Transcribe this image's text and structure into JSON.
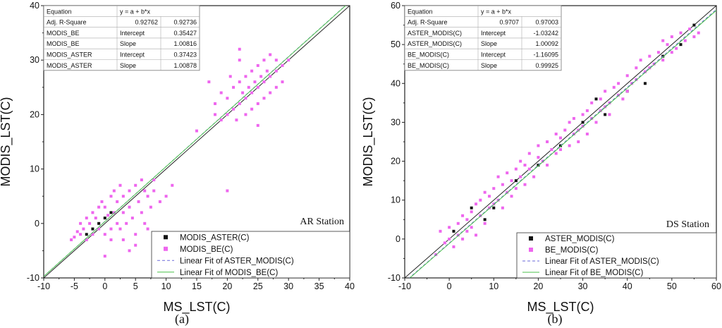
{
  "chart_data": [
    {
      "type": "scatter",
      "panel_label": "(a)",
      "station_label": "AR Station",
      "xlabel": "MS_LST(C)",
      "ylabel": "MODIS_LST(C)",
      "xlim": [
        -10,
        40
      ],
      "ylim": [
        -10,
        40
      ],
      "xticks": [
        "-10",
        "-5",
        "0",
        "5",
        "10",
        "15",
        "20",
        "25",
        "30",
        "35",
        "40"
      ],
      "yticks": [
        "-10",
        "0",
        "10",
        "20",
        "30",
        "40"
      ],
      "stats_table": [
        [
          "Equation",
          "y = a + b*x",
          ""
        ],
        [
          "Adj. R-Square",
          "0.92762",
          "0.92736"
        ],
        [
          "MODIS_BE",
          "Intercept",
          "0.35427"
        ],
        [
          "MODIS_BE",
          "Slope",
          "1.00816"
        ],
        [
          "MODIS_ASTER",
          "Intercept",
          "0.37423"
        ],
        [
          "MODIS_ASTER",
          "Slope",
          "1.00878"
        ]
      ],
      "legend": [
        "MODIS_ASTER(C)",
        "MODIS_BE(C)",
        "Linear Fit of ASTER_MODIS(C)",
        "Linear Fit of MODIS_BE(C)"
      ],
      "series": [
        {
          "name": "MODIS_ASTER(C)",
          "kind": "scatter",
          "color": "#111111",
          "points": [
            [
              -3,
              -2
            ],
            [
              -1,
              0
            ],
            [
              0,
              1
            ],
            [
              1,
              2
            ],
            [
              -2,
              -1
            ]
          ]
        },
        {
          "name": "MODIS_BE(C)",
          "kind": "scatter",
          "color": "#ee66ee",
          "points": [
            [
              -5.5,
              -3
            ],
            [
              -5,
              -2.5
            ],
            [
              -4.5,
              -1.5
            ],
            [
              -4,
              -2
            ],
            [
              -4,
              0
            ],
            [
              -3.5,
              -1
            ],
            [
              -3,
              -3
            ],
            [
              -3,
              1
            ],
            [
              -2.5,
              0
            ],
            [
              -2,
              -2
            ],
            [
              -2,
              2
            ],
            [
              -1.5,
              1
            ],
            [
              -1,
              3
            ],
            [
              -1,
              -1
            ],
            [
              -0.5,
              4
            ],
            [
              0,
              -2
            ],
            [
              0,
              -6
            ],
            [
              0,
              3
            ],
            [
              0.5,
              1.5
            ],
            [
              1,
              -1
            ],
            [
              1,
              5
            ],
            [
              1,
              -3
            ],
            [
              1.5,
              2
            ],
            [
              1.5,
              6
            ],
            [
              2,
              0
            ],
            [
              2,
              4
            ],
            [
              2.5,
              -1
            ],
            [
              2.5,
              7
            ],
            [
              3,
              2
            ],
            [
              3,
              5
            ],
            [
              3,
              -3
            ],
            [
              3.5,
              0
            ],
            [
              4,
              6
            ],
            [
              4,
              -5
            ],
            [
              4,
              3
            ],
            [
              4.5,
              1
            ],
            [
              5,
              -2
            ],
            [
              5,
              7
            ],
            [
              5,
              -4
            ],
            [
              5.5,
              4
            ],
            [
              6,
              2
            ],
            [
              6,
              8
            ],
            [
              6.5,
              0
            ],
            [
              6.5,
              6
            ],
            [
              7,
              5
            ],
            [
              7,
              -1
            ],
            [
              7.5,
              3
            ],
            [
              8,
              8
            ],
            [
              8,
              6
            ],
            [
              9,
              4
            ],
            [
              10,
              5
            ],
            [
              11,
              7
            ],
            [
              15,
              17
            ],
            [
              17,
              26
            ],
            [
              18,
              20
            ],
            [
              18,
              22
            ],
            [
              19,
              19
            ],
            [
              19,
              24
            ],
            [
              20,
              20
            ],
            [
              20,
              23
            ],
            [
              20,
              6
            ],
            [
              20.5,
              27
            ],
            [
              21,
              21
            ],
            [
              21,
              25
            ],
            [
              21.5,
              19
            ],
            [
              22,
              22
            ],
            [
              22,
              26
            ],
            [
              22,
              30
            ],
            [
              22,
              32
            ],
            [
              22.5,
              24
            ],
            [
              23,
              23
            ],
            [
              23,
              27
            ],
            [
              23,
              20
            ],
            [
              23.5,
              25
            ],
            [
              24,
              24
            ],
            [
              24,
              28
            ],
            [
              24,
              21
            ],
            [
              24.5,
              26
            ],
            [
              25,
              25
            ],
            [
              25,
              29
            ],
            [
              25,
              22
            ],
            [
              25,
              18
            ],
            [
              25.5,
              27
            ],
            [
              26,
              26
            ],
            [
              26,
              30
            ],
            [
              26,
              23
            ],
            [
              26.5,
              28
            ],
            [
              27,
              27
            ],
            [
              27,
              31
            ],
            [
              27,
              24
            ],
            [
              28,
              28
            ],
            [
              28,
              25
            ],
            [
              28,
              30
            ],
            [
              29,
              29
            ],
            [
              29,
              26
            ],
            [
              30,
              30
            ]
          ]
        }
      ],
      "fit_lines": [
        {
          "name": "Linear Fit of ASTER_MODIS(C)",
          "intercept": 0.37423,
          "slope": 1.00878,
          "color": "#6a6ad8",
          "dash": true
        },
        {
          "name": "Linear Fit of MODIS_BE(C)",
          "intercept": 0.35427,
          "slope": 1.00816,
          "color": "#4cc24c",
          "dash": false
        }
      ]
    },
    {
      "type": "scatter",
      "panel_label": "(b)",
      "station_label": "DS Station",
      "xlabel": "MS_LST(C)",
      "ylabel": "MODIS_LST(C)",
      "xlim": [
        -10,
        60
      ],
      "ylim": [
        -10,
        60
      ],
      "xticks": [
        "-10",
        "0",
        "10",
        "20",
        "30",
        "40",
        "50",
        "60"
      ],
      "yticks": [
        "-10",
        "0",
        "10",
        "20",
        "30",
        "40",
        "50",
        "60"
      ],
      "stats_table": [
        [
          "Equation",
          "y = a + b*x",
          ""
        ],
        [
          "Adj. R-Square",
          "0.9707",
          "0.97003"
        ],
        [
          "ASTER_MODIS(C)",
          "Intercept",
          "-1.03242"
        ],
        [
          "ASTER_MODIS(C)",
          "Slope",
          "1.00092"
        ],
        [
          "BE_MODIS(C)",
          "Intercept",
          "-1.16095"
        ],
        [
          "BE_MODIS(C)",
          "Slope",
          "0.99925"
        ]
      ],
      "legend": [
        "ASTER_MODIS(C)",
        "BE_MODIS(C)",
        "Linear Fit of ASTER_MODIS(C)",
        "Linear Fit of BE_MODIS(C)"
      ],
      "series": [
        {
          "name": "ASTER_MODIS(C)",
          "kind": "scatter",
          "color": "#111111",
          "points": [
            [
              5,
              8
            ],
            [
              1,
              2
            ],
            [
              8,
              5
            ],
            [
              10,
              8
            ],
            [
              15,
              15
            ],
            [
              20,
              19
            ],
            [
              25,
              24
            ],
            [
              30,
              30
            ],
            [
              33,
              36
            ],
            [
              35,
              32
            ],
            [
              40,
              38
            ],
            [
              44,
              40
            ],
            [
              48,
              47
            ],
            [
              52,
              50
            ],
            [
              55,
              55
            ]
          ]
        },
        {
          "name": "BE_MODIS(C)",
          "kind": "scatter",
          "color": "#ee66ee",
          "points": [
            [
              -3,
              -4
            ],
            [
              -2,
              2
            ],
            [
              -1,
              -1
            ],
            [
              0,
              3
            ],
            [
              0,
              0
            ],
            [
              1,
              -2
            ],
            [
              2,
              4
            ],
            [
              2,
              1
            ],
            [
              3,
              6
            ],
            [
              3,
              0
            ],
            [
              4,
              5
            ],
            [
              4,
              2
            ],
            [
              5,
              7
            ],
            [
              5,
              3
            ],
            [
              6,
              9
            ],
            [
              6,
              1
            ],
            [
              7,
              6
            ],
            [
              7,
              10
            ],
            [
              8,
              12
            ],
            [
              8,
              4
            ],
            [
              9,
              8
            ],
            [
              9,
              11
            ],
            [
              10,
              13
            ],
            [
              10,
              9
            ],
            [
              11,
              10
            ],
            [
              11,
              16
            ],
            [
              12,
              14
            ],
            [
              12,
              8
            ],
            [
              13,
              12
            ],
            [
              13,
              17
            ],
            [
              14,
              15
            ],
            [
              14,
              11
            ],
            [
              15,
              18
            ],
            [
              15,
              13
            ],
            [
              16,
              16
            ],
            [
              16,
              20
            ],
            [
              17,
              14
            ],
            [
              17,
              19
            ],
            [
              18,
              18
            ],
            [
              18,
              22
            ],
            [
              19,
              16
            ],
            [
              20,
              21
            ],
            [
              20,
              24
            ],
            [
              21,
              20
            ],
            [
              22,
              19
            ],
            [
              22,
              25
            ],
            [
              23,
              23
            ],
            [
              24,
              27
            ],
            [
              24,
              22
            ],
            [
              25,
              26
            ],
            [
              25,
              23
            ],
            [
              26,
              28
            ],
            [
              27,
              24
            ],
            [
              27,
              30
            ],
            [
              28,
              27
            ],
            [
              28,
              31
            ],
            [
              29,
              28
            ],
            [
              29,
              25
            ],
            [
              30,
              32
            ],
            [
              30,
              29
            ],
            [
              31,
              33
            ],
            [
              31,
              27
            ],
            [
              32,
              31
            ],
            [
              32,
              35
            ],
            [
              33,
              30
            ],
            [
              34,
              36
            ],
            [
              34,
              33
            ],
            [
              35,
              34
            ],
            [
              35,
              38
            ],
            [
              36,
              35
            ],
            [
              36,
              32
            ],
            [
              37,
              39
            ],
            [
              38,
              37
            ],
            [
              38,
              40
            ],
            [
              39,
              36
            ],
            [
              40,
              42
            ],
            [
              40,
              38
            ],
            [
              41,
              40
            ],
            [
              42,
              44
            ],
            [
              42,
              41
            ],
            [
              43,
              46
            ],
            [
              44,
              43
            ],
            [
              45,
              44
            ],
            [
              45,
              47
            ],
            [
              46,
              45
            ],
            [
              47,
              48
            ],
            [
              48,
              46
            ],
            [
              48,
              51
            ],
            [
              49,
              50
            ],
            [
              50,
              52
            ],
            [
              50,
              48
            ],
            [
              51,
              49
            ],
            [
              52,
              53
            ],
            [
              53,
              51
            ],
            [
              54,
              54
            ],
            [
              55,
              52
            ],
            [
              56,
              53
            ]
          ]
        }
      ],
      "fit_lines": [
        {
          "name": "Linear Fit of ASTER_MODIS(C)",
          "intercept": -1.03242,
          "slope": 1.00092,
          "color": "#6a6ad8",
          "dash": true
        },
        {
          "name": "Linear Fit of BE_MODIS(C)",
          "intercept": -1.16095,
          "slope": 0.99925,
          "color": "#4cc24c",
          "dash": false
        }
      ]
    }
  ]
}
